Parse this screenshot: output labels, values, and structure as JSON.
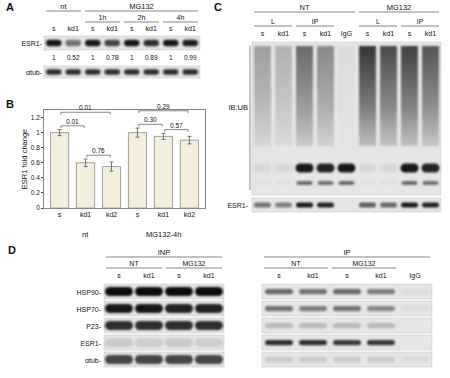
{
  "chart_data": {
    "type": "bar",
    "title": "B",
    "categories": [
      "s",
      "kd1",
      "kd2",
      "s",
      "kd1",
      "kd2"
    ],
    "values": [
      1.0,
      0.6,
      0.55,
      1.0,
      0.95,
      0.9
    ],
    "errors": [
      0.04,
      0.05,
      0.06,
      0.06,
      0.04,
      0.05
    ],
    "color": "#f3efdc",
    "ylabel": "ESR1 fold change",
    "ylim": [
      0,
      1.3
    ],
    "yticks": [
      0,
      0.2,
      0.4,
      0.6,
      0.8,
      1,
      1.2
    ],
    "grid": false,
    "groups": [
      {
        "label": "nt",
        "start": 0,
        "end": 2
      },
      {
        "label": "MG132-4h",
        "start": 3,
        "end": 5
      }
    ],
    "comparisons": [
      {
        "label": "0.76",
        "pair": [
          1,
          2
        ]
      },
      {
        "label": "0.01",
        "pair": [
          0,
          1
        ]
      },
      {
        "label": "0.01",
        "pair": [
          0,
          2
        ]
      },
      {
        "label": "0.57",
        "pair": [
          4,
          5
        ]
      },
      {
        "label": "0.30",
        "pair": [
          3,
          4
        ]
      },
      {
        "label": "0.29",
        "pair": [
          3,
          5
        ]
      }
    ]
  },
  "blots": {
    "A": {
      "label": "A",
      "sections": [
        {
          "label": "nt",
          "groups": [
            {
              "lanes": [
                "s",
                "kd1"
              ]
            }
          ]
        },
        {
          "label": "MG132",
          "groups": [
            {
              "label": "1h",
              "lanes": [
                "s",
                "kd1"
              ]
            },
            {
              "label": "2h",
              "lanes": [
                "s",
                "kd1"
              ]
            },
            {
              "label": "4h",
              "lanes": [
                "s",
                "kd1"
              ]
            }
          ]
        }
      ],
      "rows": [
        "ESR1-",
        "αtub-"
      ],
      "quantification": [
        1,
        0.52,
        1,
        0.78,
        1,
        0.89,
        1,
        0.99
      ]
    },
    "C": {
      "label": "C",
      "sections": [
        {
          "label": "NT",
          "groups": [
            {
              "label": "L",
              "lanes": [
                "s",
                "kd1"
              ]
            },
            {
              "label": "IP",
              "lanes": [
                "s",
                "kd1"
              ]
            },
            {
              "lanes": [
                "IgG"
              ]
            }
          ]
        },
        {
          "label": "MG132",
          "groups": [
            {
              "label": "L",
              "lanes": [
                "s",
                "kd1"
              ]
            },
            {
              "label": "IP",
              "lanes": [
                "s",
                "kd1"
              ]
            }
          ]
        }
      ],
      "rows": [
        "IB:UB",
        "ESR1-"
      ]
    },
    "D": {
      "label": "D",
      "sections": [
        {
          "label": "INP",
          "groups": [
            {
              "label": "NT",
              "lanes": [
                "s",
                "kd1"
              ]
            },
            {
              "label": "MG132",
              "lanes": [
                "s",
                "kd1"
              ]
            }
          ]
        },
        {
          "label": "IP",
          "groups": [
            {
              "label": "NT",
              "lanes": [
                "s",
                "kd1"
              ]
            },
            {
              "label": "MG132",
              "lanes": [
                "s",
                "kd1"
              ]
            },
            {
              "lanes": [
                "IgG"
              ]
            }
          ]
        }
      ],
      "rows": [
        "HSP90-",
        "HSP70-",
        "P23-",
        "ESR1-",
        "αtub-"
      ]
    }
  }
}
